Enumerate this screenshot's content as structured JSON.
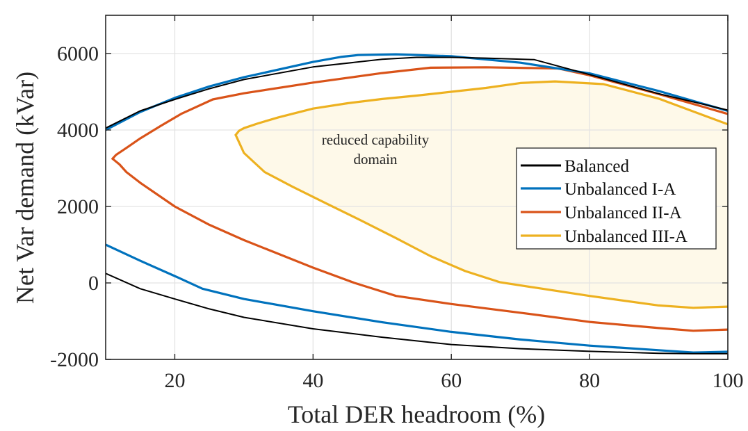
{
  "chart_data": {
    "type": "line",
    "title": "",
    "xlabel": "Total DER headroom (%)",
    "ylabel": "Net Var demand (kVar)",
    "xlim": [
      10,
      100
    ],
    "ylim": [
      -2000,
      7000
    ],
    "xticks": [
      20,
      40,
      60,
      80,
      100
    ],
    "yticks": [
      -2000,
      0,
      2000,
      4000,
      6000
    ],
    "grid": true,
    "legend_position": "right",
    "annotation": {
      "lines": [
        "reduced capability",
        "domain"
      ],
      "x": 53,
      "y": 3800
    },
    "shaded_region": {
      "series": "Unbalanced III-A",
      "color": "#FEF9E9"
    },
    "series": [
      {
        "name": "Balanced",
        "color": "#000000",
        "width": 2,
        "upper": {
          "x": [
            10,
            15,
            20,
            25,
            30,
            40,
            50,
            55,
            60,
            65,
            72,
            80,
            90,
            100
          ],
          "y": [
            4050,
            4500,
            4800,
            5080,
            5320,
            5650,
            5850,
            5900,
            5900,
            5880,
            5840,
            5450,
            4950,
            4520
          ]
        },
        "lower": {
          "x": [
            10,
            15,
            20,
            25,
            30,
            40,
            50,
            60,
            70,
            80,
            90,
            95,
            100
          ],
          "y": [
            250,
            -150,
            -420,
            -680,
            -900,
            -1200,
            -1420,
            -1610,
            -1720,
            -1790,
            -1840,
            -1850,
            -1850
          ]
        }
      },
      {
        "name": "Unbalanced I-A",
        "color": "#0072BD",
        "width": 3.2,
        "upper": {
          "x": [
            10,
            15,
            20,
            25,
            30,
            40,
            44,
            46.5,
            52,
            60,
            70,
            80,
            90,
            100
          ],
          "y": [
            4000,
            4470,
            4840,
            5140,
            5380,
            5780,
            5910,
            5960,
            5980,
            5930,
            5760,
            5480,
            5020,
            4500
          ]
        },
        "lower": {
          "x": [
            10,
            15,
            20,
            24,
            30,
            40,
            50,
            60,
            70,
            80,
            90,
            95,
            100
          ],
          "y": [
            1000,
            580,
            180,
            -150,
            -420,
            -740,
            -1030,
            -1280,
            -1480,
            -1640,
            -1760,
            -1820,
            -1800
          ]
        }
      },
      {
        "name": "Unbalanced II-A",
        "color": "#D95319",
        "width": 3.2,
        "upper": {
          "x": [
            11,
            11.5,
            13,
            15,
            18,
            21,
            25.5,
            30,
            40,
            50,
            57,
            65,
            75.5,
            80,
            90,
            100
          ],
          "y": [
            3250,
            3350,
            3530,
            3780,
            4110,
            4430,
            4800,
            4960,
            5240,
            5490,
            5630,
            5640,
            5610,
            5430,
            4940,
            4420
          ]
        },
        "lower": {
          "x": [
            11,
            12,
            13,
            15,
            20,
            25,
            30,
            40,
            46,
            52,
            60,
            70,
            80,
            90,
            95,
            100
          ],
          "y": [
            3250,
            3100,
            2900,
            2620,
            2000,
            1520,
            1120,
            400,
            0,
            -340,
            -550,
            -780,
            -1020,
            -1180,
            -1250,
            -1220
          ]
        }
      },
      {
        "name": "Unbalanced III-A",
        "color": "#EDB120",
        "width": 3.2,
        "upper": {
          "x": [
            28.8,
            29.3,
            30,
            32,
            35,
            40,
            45,
            50,
            55,
            60,
            65,
            70,
            75,
            82,
            90,
            100
          ],
          "y": [
            3870,
            3980,
            4050,
            4170,
            4330,
            4560,
            4700,
            4810,
            4900,
            5000,
            5100,
            5230,
            5270,
            5200,
            4820,
            4150
          ]
        },
        "lower": {
          "x": [
            28.8,
            30,
            33,
            37,
            42,
            47,
            52,
            57,
            62,
            67,
            72,
            80,
            90,
            95,
            100
          ],
          "y": [
            3870,
            3400,
            2900,
            2520,
            2070,
            1630,
            1170,
            700,
            310,
            20,
            -120,
            -340,
            -590,
            -650,
            -620
          ]
        }
      }
    ]
  }
}
